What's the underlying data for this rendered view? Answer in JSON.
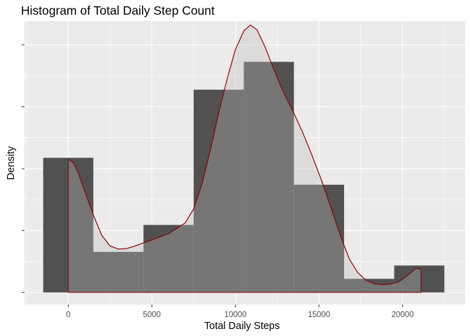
{
  "chart_data": {
    "type": "bar",
    "title": "Histogram of Total Daily Step Count",
    "xlabel": "Total Daily Steps",
    "ylabel": "Density",
    "xlim": [
      -2620,
      23740
    ],
    "x_ticks": [
      0,
      5000,
      10000,
      15000,
      20000
    ],
    "x_tick_labels": [
      "0",
      "5000",
      "10000",
      "15000",
      "20000"
    ],
    "ylim": [
      -3.9e-06,
      8.77e-05
    ],
    "y_ticks": [
      0,
      2e-05,
      4e-05,
      6e-05,
      8e-05
    ],
    "y_tick_labels": [
      "",
      "",
      "",
      "",
      ""
    ],
    "grid": true,
    "bin_width": 3000,
    "bins": [
      {
        "x0": -1500,
        "x1": 1500,
        "density": 4.35e-05
      },
      {
        "x0": 1500,
        "x1": 4500,
        "density": 1.31e-05
      },
      {
        "x0": 4500,
        "x1": 7500,
        "density": 2.18e-05
      },
      {
        "x0": 7500,
        "x1": 10500,
        "density": 6.55e-05
      },
      {
        "x0": 10500,
        "x1": 13500,
        "density": 7.45e-05
      },
      {
        "x0": 13500,
        "x1": 16500,
        "density": 3.48e-05
      },
      {
        "x0": 16500,
        "x1": 19500,
        "density": 4.4e-06
      },
      {
        "x0": 19500,
        "x1": 22500,
        "density": 8.7e-06
      }
    ],
    "density_curve": {
      "x": [
        0,
        300,
        600,
        1000,
        1500,
        2000,
        2500,
        3000,
        3500,
        4000,
        5000,
        6000,
        7000,
        7500,
        8000,
        8500,
        9000,
        9500,
        10000,
        10500,
        10900,
        11300,
        11800,
        12300,
        12800,
        13400,
        14000,
        14600,
        15200,
        15800,
        16300,
        16800,
        17300,
        17800,
        18300,
        18800,
        19300,
        19800,
        20300,
        20800,
        21100
      ],
      "y": [
        4.3e-05,
        4.2e-05,
        3.85e-05,
        3.25e-05,
        2.5e-05,
        1.85e-05,
        1.5e-05,
        1.4e-05,
        1.42e-05,
        1.5e-05,
        1.7e-05,
        1.9e-05,
        2.25e-05,
        2.7e-05,
        3.5e-05,
        4.6e-05,
        5.8e-05,
        6.9e-05,
        7.85e-05,
        8.45e-05,
        8.64e-05,
        8.48e-05,
        7.9e-05,
        7.2e-05,
        6.55e-05,
        5.9e-05,
        5.2e-05,
        4.4e-05,
        3.55e-05,
        2.6e-05,
        1.8e-05,
        1.1e-05,
        6.5e-06,
        4e-06,
        2.8e-06,
        2.5e-06,
        2.7e-06,
        3.5e-06,
        5.5e-06,
        7.8e-06,
        7.5e-06
      ]
    },
    "colors": {
      "panel": "#ebebeb",
      "grid_major": "#ffffff",
      "bar_fill": "#515151",
      "density_fill": "#bebebe",
      "density_line": "#8b0000"
    }
  }
}
